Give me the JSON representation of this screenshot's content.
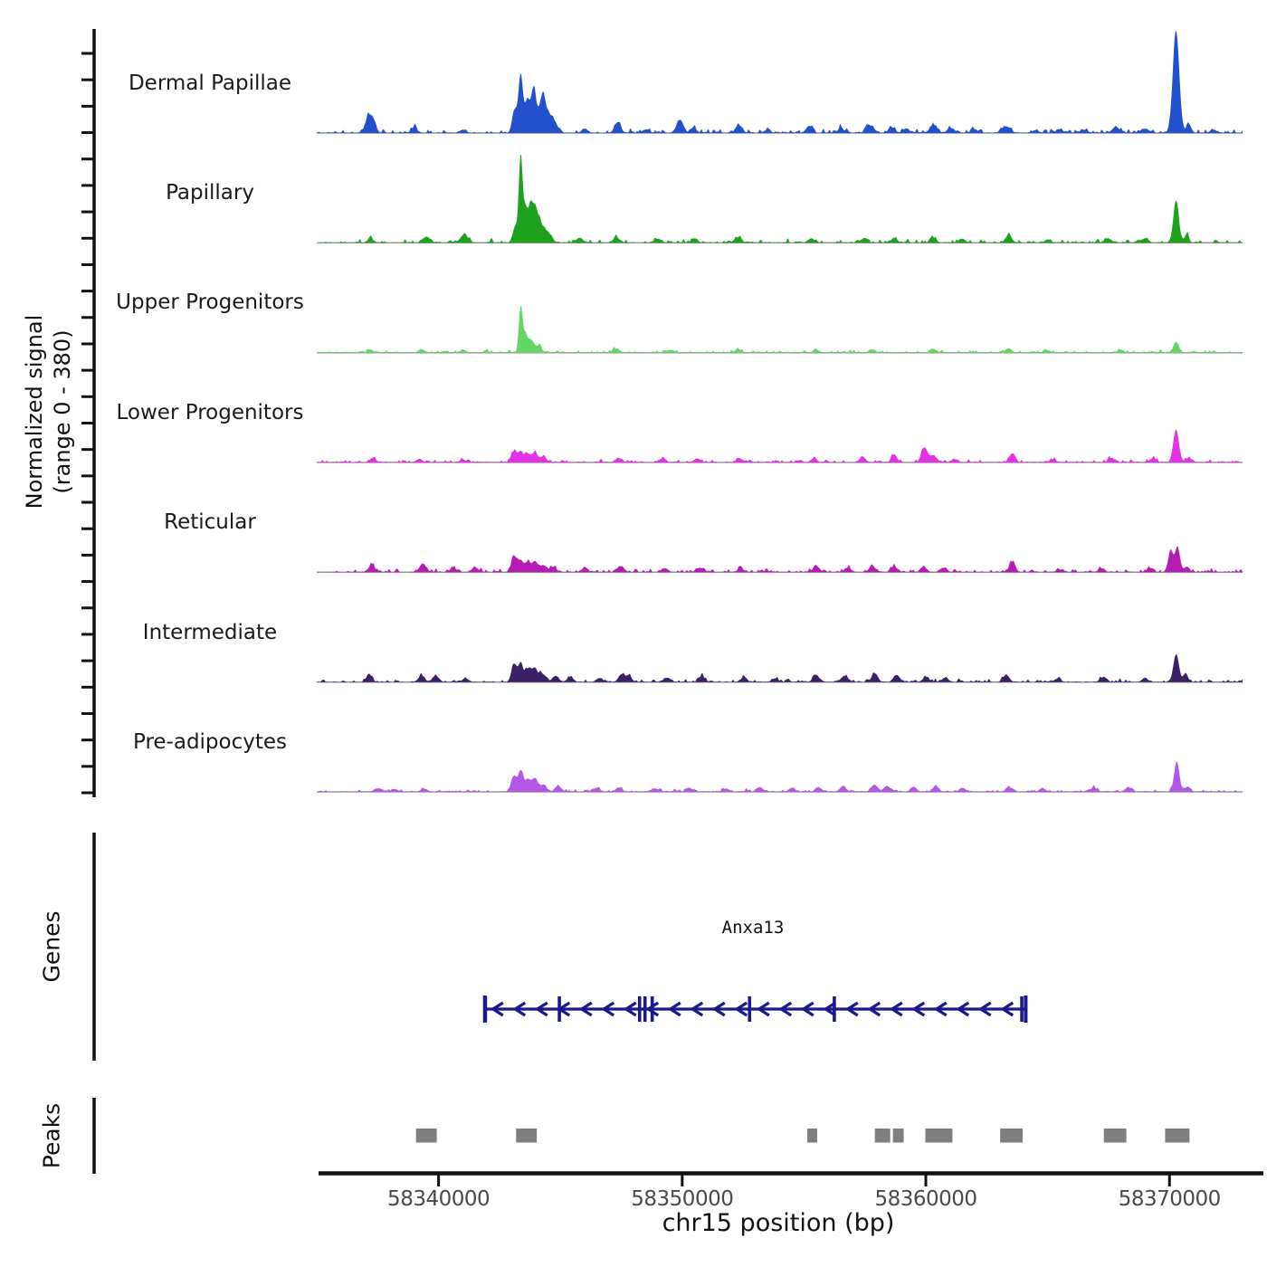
{
  "y_axis": {
    "line1": "Normalized signal",
    "line2": "(range 0 - 380)"
  },
  "chart_data": {
    "type": "area",
    "title": "",
    "xlabel": "chr15 position (bp)",
    "ylabel": "Normalized signal (range 0 - 380)",
    "xlim": [
      58335000,
      58373000
    ],
    "ylim_per_track": [
      0,
      380
    ],
    "x_ticks": [
      58340000,
      58350000,
      58360000,
      58370000
    ],
    "tick_labels": [
      "58340000",
      "58350000",
      "58360000",
      "58370000"
    ],
    "grid": false,
    "legend": "none",
    "baseline_color": "#999999",
    "axis_color": "#111111",
    "tracks": [
      {
        "name": "Dermal Papillae",
        "color": "#2350cd",
        "noise": 12,
        "seed": 11,
        "peaks": [
          [
            58337150,
            62,
            300
          ],
          [
            58337350,
            25,
            200
          ],
          [
            58339000,
            18,
            250
          ],
          [
            58341000,
            12,
            250
          ],
          [
            58343120,
            85,
            200
          ],
          [
            58343370,
            215,
            180
          ],
          [
            58343630,
            112,
            200
          ],
          [
            58343900,
            165,
            220
          ],
          [
            58344260,
            135,
            260
          ],
          [
            58344550,
            55,
            300
          ],
          [
            58344800,
            25,
            300
          ],
          [
            58346000,
            14,
            250
          ],
          [
            58347350,
            38,
            250
          ],
          [
            58348500,
            12,
            250
          ],
          [
            58349900,
            46,
            280
          ],
          [
            58350450,
            20,
            200
          ],
          [
            58352320,
            30,
            250
          ],
          [
            58353500,
            12,
            250
          ],
          [
            58355200,
            24,
            250
          ],
          [
            58356500,
            14,
            250
          ],
          [
            58357700,
            26,
            300
          ],
          [
            58358600,
            20,
            250
          ],
          [
            58359200,
            16,
            250
          ],
          [
            58360300,
            26,
            300
          ],
          [
            58361000,
            18,
            250
          ],
          [
            58362000,
            12,
            250
          ],
          [
            58363300,
            24,
            300
          ],
          [
            58364500,
            10,
            250
          ],
          [
            58365500,
            14,
            250
          ],
          [
            58366500,
            12,
            250
          ],
          [
            58367800,
            22,
            300
          ],
          [
            58369000,
            16,
            250
          ],
          [
            58370270,
            380,
            260
          ],
          [
            58370800,
            28,
            200
          ],
          [
            58371800,
            12,
            250
          ]
        ]
      },
      {
        "name": "Papillary",
        "color": "#1ea21e",
        "noise": 10,
        "seed": 22,
        "peaks": [
          [
            58337200,
            15,
            250
          ],
          [
            58339500,
            22,
            300
          ],
          [
            58341050,
            30,
            300
          ],
          [
            58343150,
            60,
            200
          ],
          [
            58343370,
            315,
            150
          ],
          [
            58343560,
            120,
            180
          ],
          [
            58343780,
            130,
            200
          ],
          [
            58343980,
            110,
            200
          ],
          [
            58344200,
            60,
            250
          ],
          [
            58344500,
            35,
            300
          ],
          [
            58345800,
            18,
            250
          ],
          [
            58347300,
            20,
            250
          ],
          [
            58349000,
            14,
            250
          ],
          [
            58350500,
            16,
            250
          ],
          [
            58352300,
            20,
            250
          ],
          [
            58355300,
            16,
            250
          ],
          [
            58357500,
            18,
            250
          ],
          [
            58358700,
            16,
            250
          ],
          [
            58360300,
            18,
            250
          ],
          [
            58361500,
            14,
            250
          ],
          [
            58363400,
            28,
            250
          ],
          [
            58365000,
            12,
            250
          ],
          [
            58367500,
            14,
            250
          ],
          [
            58369000,
            16,
            250
          ],
          [
            58370270,
            158,
            220
          ],
          [
            58370700,
            25,
            200
          ]
        ]
      },
      {
        "name": "Upper Progenitors",
        "color": "#63d663",
        "noise": 7,
        "seed": 33,
        "peaks": [
          [
            58337200,
            10,
            250
          ],
          [
            58339300,
            12,
            250
          ],
          [
            58341000,
            10,
            250
          ],
          [
            58343370,
            165,
            150
          ],
          [
            58343560,
            62,
            180
          ],
          [
            58343800,
            45,
            220
          ],
          [
            58344100,
            25,
            250
          ],
          [
            58347300,
            12,
            250
          ],
          [
            58349500,
            10,
            250
          ],
          [
            58352300,
            12,
            250
          ],
          [
            58355500,
            10,
            250
          ],
          [
            58357800,
            12,
            250
          ],
          [
            58360300,
            14,
            250
          ],
          [
            58363400,
            16,
            250
          ],
          [
            58365000,
            8,
            250
          ],
          [
            58368000,
            10,
            250
          ],
          [
            58370270,
            38,
            220
          ]
        ]
      },
      {
        "name": "Lower Progenitors",
        "color": "#e531e5",
        "noise": 9,
        "seed": 44,
        "peaks": [
          [
            58337300,
            14,
            250
          ],
          [
            58339200,
            12,
            250
          ],
          [
            58341000,
            10,
            250
          ],
          [
            58343100,
            42,
            220
          ],
          [
            58343370,
            40,
            200
          ],
          [
            58343650,
            32,
            220
          ],
          [
            58343950,
            36,
            240
          ],
          [
            58344300,
            20,
            250
          ],
          [
            58347400,
            16,
            250
          ],
          [
            58349200,
            14,
            250
          ],
          [
            58350600,
            14,
            250
          ],
          [
            58352400,
            12,
            250
          ],
          [
            58355400,
            14,
            250
          ],
          [
            58357400,
            20,
            250
          ],
          [
            58358700,
            28,
            220
          ],
          [
            58359950,
            55,
            250
          ],
          [
            58360300,
            24,
            250
          ],
          [
            58361200,
            12,
            250
          ],
          [
            58363550,
            34,
            240
          ],
          [
            58365200,
            10,
            250
          ],
          [
            58367600,
            12,
            250
          ],
          [
            58369300,
            14,
            250
          ],
          [
            58370270,
            122,
            230
          ],
          [
            58370800,
            18,
            200
          ]
        ]
      },
      {
        "name": "Reticular",
        "color": "#b41cb4",
        "noise": 10,
        "seed": 55,
        "peaks": [
          [
            58337250,
            26,
            250
          ],
          [
            58339350,
            32,
            260
          ],
          [
            58340600,
            16,
            250
          ],
          [
            58341500,
            18,
            250
          ],
          [
            58343100,
            60,
            220
          ],
          [
            58343370,
            42,
            200
          ],
          [
            58343650,
            38,
            220
          ],
          [
            58343950,
            40,
            240
          ],
          [
            58344300,
            26,
            250
          ],
          [
            58344700,
            18,
            250
          ],
          [
            58346000,
            14,
            250
          ],
          [
            58347500,
            20,
            250
          ],
          [
            58349300,
            14,
            250
          ],
          [
            58350700,
            16,
            250
          ],
          [
            58352400,
            14,
            250
          ],
          [
            58355500,
            22,
            250
          ],
          [
            58356800,
            16,
            250
          ],
          [
            58357800,
            24,
            250
          ],
          [
            58358700,
            20,
            250
          ],
          [
            58359900,
            20,
            250
          ],
          [
            58360700,
            16,
            250
          ],
          [
            58363550,
            38,
            240
          ],
          [
            58365500,
            10,
            250
          ],
          [
            58367200,
            14,
            250
          ],
          [
            58369200,
            16,
            250
          ],
          [
            58370050,
            80,
            200
          ],
          [
            58370330,
            92,
            200
          ],
          [
            58370700,
            20,
            200
          ]
        ]
      },
      {
        "name": "Intermediate",
        "color": "#3c2066",
        "noise": 9,
        "seed": 66,
        "peaks": [
          [
            58337150,
            30,
            220
          ],
          [
            58339300,
            24,
            250
          ],
          [
            58339900,
            22,
            250
          ],
          [
            58341100,
            14,
            250
          ],
          [
            58343100,
            62,
            220
          ],
          [
            58343370,
            68,
            190
          ],
          [
            58343650,
            46,
            220
          ],
          [
            58343950,
            52,
            240
          ],
          [
            58344300,
            28,
            250
          ],
          [
            58344800,
            20,
            260
          ],
          [
            58345400,
            16,
            250
          ],
          [
            58346600,
            14,
            250
          ],
          [
            58347500,
            28,
            240
          ],
          [
            58347800,
            24,
            240
          ],
          [
            58349400,
            16,
            250
          ],
          [
            58350800,
            18,
            250
          ],
          [
            58352500,
            14,
            250
          ],
          [
            58353800,
            12,
            250
          ],
          [
            58355500,
            26,
            250
          ],
          [
            58356700,
            20,
            250
          ],
          [
            58357900,
            30,
            250
          ],
          [
            58358800,
            26,
            250
          ],
          [
            58360000,
            18,
            250
          ],
          [
            58360800,
            16,
            250
          ],
          [
            58363300,
            26,
            250
          ],
          [
            58365400,
            12,
            250
          ],
          [
            58367300,
            18,
            250
          ],
          [
            58369000,
            14,
            250
          ],
          [
            58370270,
            102,
            220
          ],
          [
            58370650,
            30,
            200
          ]
        ]
      },
      {
        "name": "Pre-adipocytes",
        "color": "#b457e6",
        "noise": 7,
        "seed": 77,
        "peaks": [
          [
            58337500,
            12,
            300
          ],
          [
            58338200,
            10,
            250
          ],
          [
            58339400,
            12,
            250
          ],
          [
            58343100,
            60,
            220
          ],
          [
            58343370,
            76,
            190
          ],
          [
            58343650,
            46,
            220
          ],
          [
            58343950,
            50,
            240
          ],
          [
            58344300,
            26,
            250
          ],
          [
            58344900,
            22,
            250
          ],
          [
            58346500,
            14,
            250
          ],
          [
            58347400,
            16,
            250
          ],
          [
            58348900,
            12,
            250
          ],
          [
            58350300,
            14,
            250
          ],
          [
            58351800,
            12,
            250
          ],
          [
            58353200,
            16,
            250
          ],
          [
            58354500,
            14,
            250
          ],
          [
            58355600,
            16,
            250
          ],
          [
            58356600,
            20,
            250
          ],
          [
            58357900,
            26,
            250
          ],
          [
            58358400,
            22,
            250
          ],
          [
            58359500,
            18,
            250
          ],
          [
            58360400,
            20,
            250
          ],
          [
            58361500,
            14,
            250
          ],
          [
            58363400,
            16,
            250
          ],
          [
            58364800,
            12,
            250
          ],
          [
            58366900,
            14,
            250
          ],
          [
            58368300,
            16,
            250
          ],
          [
            58370300,
            112,
            210
          ],
          [
            58370750,
            20,
            200
          ]
        ]
      }
    ],
    "gene_track": {
      "label": "Genes",
      "genes": [
        {
          "name": "Anxa13",
          "start": 58341900,
          "end": 58364100,
          "strand": "-",
          "color": "#1a1a8e",
          "exon_marks": [
            58341924,
            58344958,
            58348251,
            58348473,
            58348769,
            58352765,
            58356243,
            58363939
          ]
        }
      ]
    },
    "peaks_track": {
      "label": "Peaks",
      "color": "#7f7f7f",
      "intervals": [
        [
          58339075,
          58339926
        ],
        [
          58343182,
          58344033
        ],
        [
          58355133,
          58355540
        ],
        [
          58357908,
          58358537
        ],
        [
          58358648,
          58359092
        ],
        [
          58359980,
          58361090
        ],
        [
          58363051,
          58363976
        ],
        [
          58367306,
          58368231
        ],
        [
          58369822,
          58370821
        ]
      ]
    }
  }
}
